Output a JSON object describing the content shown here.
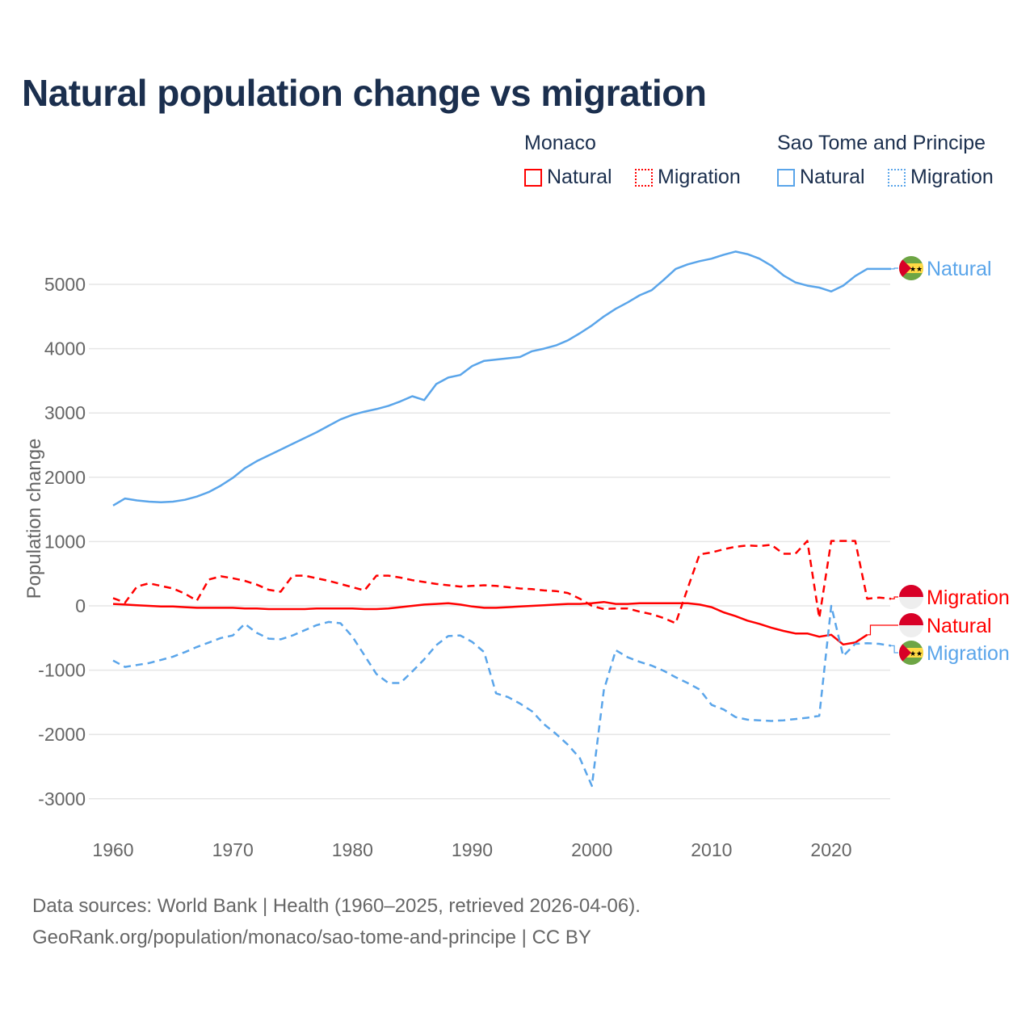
{
  "title": "Natural population change vs migration",
  "legend": {
    "groups": [
      {
        "name": "Monaco",
        "items": [
          "Natural",
          "Migration"
        ],
        "color": "#ff0000"
      },
      {
        "name": "Sao Tome and Principe",
        "items": [
          "Natural",
          "Migration"
        ],
        "color": "#5aa5ea"
      }
    ]
  },
  "footer": {
    "line1": "Data sources: World Bank | Health (1960–2025, retrieved 2026-04-06).",
    "line2": "GeoRank.org/population/monaco/sao-tome-and-principe | CC BY"
  },
  "chart_data": {
    "type": "line",
    "title": "Natural population change vs migration",
    "xlabel": "",
    "ylabel": "Population change",
    "xlim": [
      1960,
      2025
    ],
    "ylim": [
      -3000,
      5500
    ],
    "x_ticks": [
      1960,
      1970,
      1980,
      1990,
      2000,
      2010,
      2020
    ],
    "y_ticks": [
      -3000,
      -2000,
      -1000,
      0,
      1000,
      2000,
      3000,
      4000,
      5000
    ],
    "grid": true,
    "x_start": 1960,
    "series": [
      {
        "name": "Sao Tome and Principe Natural",
        "label": "Natural",
        "color": "#5aa5ea",
        "dashed": false,
        "values": [
          1560,
          1670,
          1640,
          1620,
          1610,
          1620,
          1650,
          1700,
          1770,
          1870,
          1990,
          2140,
          2250,
          2340,
          2430,
          2520,
          2610,
          2700,
          2800,
          2900,
          2970,
          3020,
          3060,
          3110,
          3180,
          3260,
          3200,
          3450,
          3550,
          3590,
          3730,
          3810,
          3830,
          3850,
          3870,
          3960,
          4000,
          4050,
          4130,
          4240,
          4360,
          4500,
          4620,
          4720,
          4830,
          4910,
          5070,
          5240,
          5310,
          5360,
          5400,
          5460,
          5510,
          5470,
          5400,
          5290,
          5140,
          5030,
          4980,
          4950,
          4890,
          4980,
          5130,
          5240,
          5240,
          5240
        ]
      },
      {
        "name": "Monaco Migration",
        "label": "Migration",
        "color": "#ff0000",
        "dashed": true,
        "values": [
          120,
          50,
          300,
          350,
          310,
          270,
          190,
          80,
          410,
          460,
          430,
          390,
          330,
          250,
          220,
          470,
          470,
          430,
          390,
          340,
          290,
          240,
          470,
          470,
          440,
          400,
          370,
          340,
          320,
          300,
          310,
          320,
          310,
          290,
          270,
          260,
          240,
          230,
          200,
          110,
          0,
          -50,
          -40,
          -40,
          -90,
          -130,
          -190,
          -270,
          270,
          800,
          830,
          880,
          920,
          940,
          930,
          950,
          810,
          810,
          1010,
          -190,
          1010,
          1010,
          1010,
          110,
          130,
          110
        ]
      },
      {
        "name": "Monaco Natural",
        "label": "Natural",
        "color": "#ff0000",
        "dashed": false,
        "values": [
          30,
          20,
          10,
          0,
          -10,
          -10,
          -20,
          -30,
          -30,
          -30,
          -30,
          -40,
          -40,
          -50,
          -50,
          -50,
          -50,
          -40,
          -40,
          -40,
          -40,
          -50,
          -50,
          -40,
          -20,
          0,
          20,
          30,
          40,
          20,
          -10,
          -30,
          -30,
          -20,
          -10,
          0,
          10,
          20,
          30,
          30,
          40,
          60,
          30,
          30,
          40,
          40,
          40,
          40,
          40,
          20,
          -20,
          -100,
          -160,
          -230,
          -280,
          -340,
          -390,
          -430,
          -430,
          -480,
          -450,
          -600,
          -570,
          -450,
          null,
          null
        ]
      },
      {
        "name": "Sao Tome and Principe Migration",
        "label": "Migration",
        "color": "#5aa5ea",
        "dashed": true,
        "values": [
          -850,
          -950,
          -920,
          -890,
          -840,
          -790,
          -720,
          -640,
          -570,
          -500,
          -460,
          -280,
          -420,
          -510,
          -520,
          -460,
          -380,
          -300,
          -250,
          -270,
          -480,
          -770,
          -1060,
          -1200,
          -1200,
          -1020,
          -830,
          -610,
          -470,
          -460,
          -560,
          -720,
          -1360,
          -1420,
          -1520,
          -1640,
          -1840,
          -1990,
          -2160,
          -2370,
          -2800,
          -1310,
          -690,
          -800,
          -870,
          -930,
          -1010,
          -1110,
          -1200,
          -1300,
          -1540,
          -1610,
          -1730,
          -1770,
          -1780,
          -1790,
          -1780,
          -1760,
          -1740,
          -1710,
          0,
          -780,
          -590,
          -580,
          -590,
          -620
        ]
      }
    ]
  }
}
